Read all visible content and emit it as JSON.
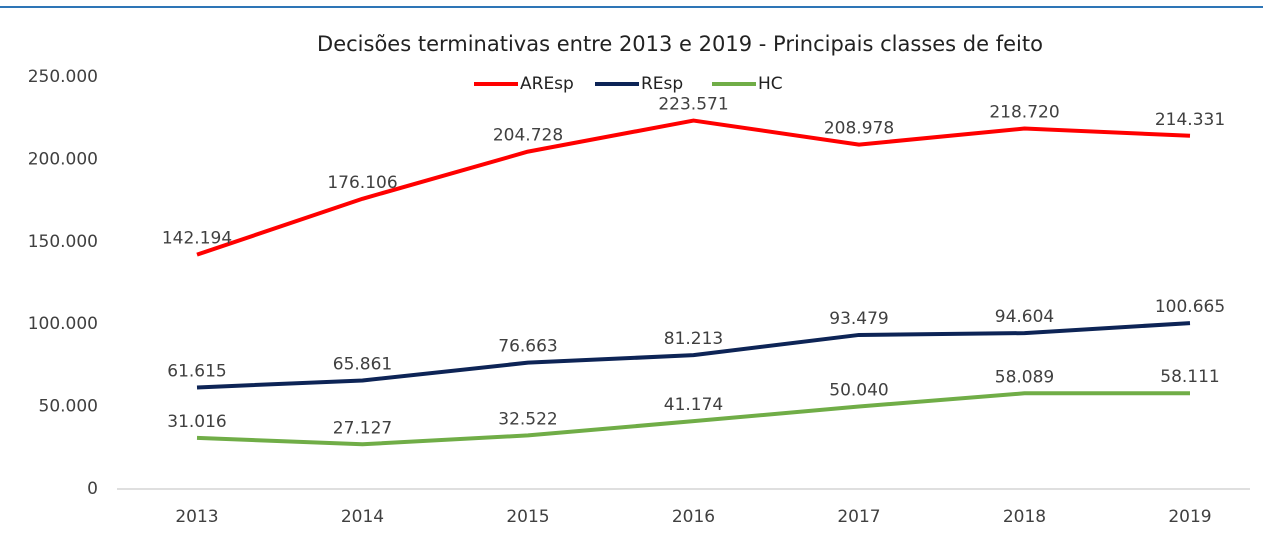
{
  "chart_data": {
    "type": "line",
    "title": "Decisões terminativas entre 2013 e 2019 - Principais classes de feito",
    "categories": [
      "2013",
      "2014",
      "2015",
      "2016",
      "2017",
      "2018",
      "2019"
    ],
    "series": [
      {
        "name": "AREsp",
        "color": "#ff0000",
        "values": [
          142194,
          176106,
          204728,
          223571,
          208978,
          218720,
          214331
        ],
        "value_labels": [
          "142.194",
          "176.106",
          "204.728",
          "223.571",
          "208.978",
          "218.720",
          "214.331"
        ]
      },
      {
        "name": "REsp",
        "color": "#0d2456",
        "values": [
          61615,
          65861,
          76663,
          81213,
          93479,
          94604,
          100665
        ],
        "value_labels": [
          "61.615",
          "65.861",
          "76.663",
          "81.213",
          "93.479",
          "94.604",
          "100.665"
        ]
      },
      {
        "name": "HC",
        "color": "#70ad47",
        "values": [
          31016,
          27127,
          32522,
          41174,
          50040,
          58089,
          58111
        ],
        "value_labels": [
          "31.016",
          "27.127",
          "32.522",
          "41.174",
          "50.040",
          "58.089",
          "58.111"
        ]
      }
    ],
    "ylim": [
      0,
      250000
    ],
    "yticks": [
      0,
      {
        "value": 50000,
        "label": "50.000"
      },
      {
        "value": 100000,
        "label": "100.000"
      },
      {
        "value": 150000,
        "label": "150.000"
      },
      {
        "value": 200000,
        "label": "200.000"
      },
      {
        "value": 250000,
        "label": "250.000"
      }
    ],
    "grid": false,
    "legend": "top"
  }
}
